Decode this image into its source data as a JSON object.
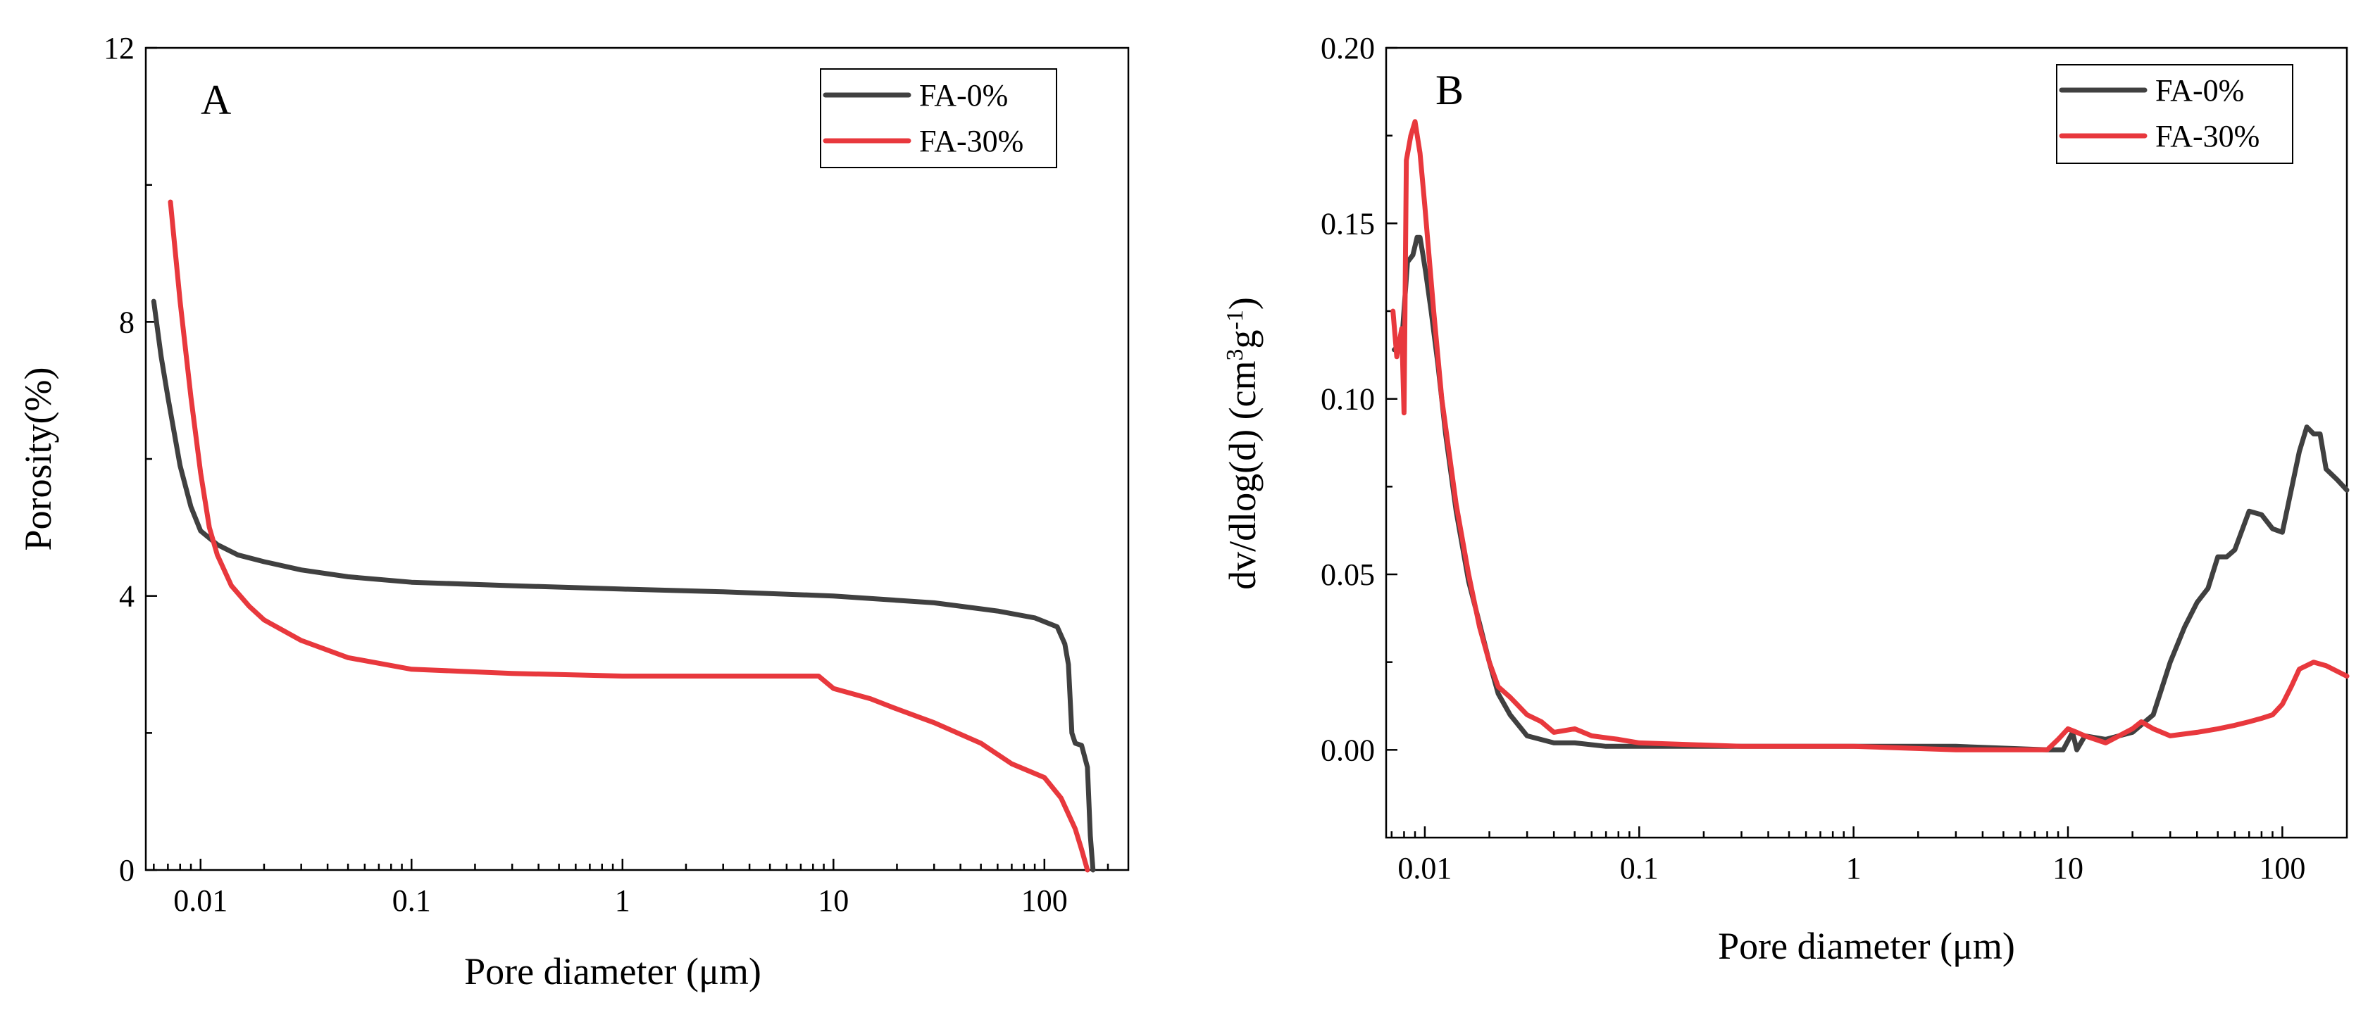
{
  "colors": {
    "FA-0%": "#404040",
    "FA-30%": "#e8383d"
  },
  "chart_data": [
    {
      "type": "line",
      "panel_label": "A",
      "title": "",
      "xlabel": "Pore diameter (μm)",
      "ylabel": "Porosity(%)",
      "xscale": "log",
      "xlim": [
        0.0055,
        250
      ],
      "ylim": [
        0,
        12
      ],
      "xticks": [
        0.01,
        0.1,
        1,
        10,
        100
      ],
      "xtick_labels": [
        "0.01",
        "0.1",
        "1",
        "10",
        "100"
      ],
      "yticks": [
        0,
        4,
        8,
        12
      ],
      "ytick_labels": [
        "0",
        "4",
        "8",
        "12"
      ],
      "legend_position": "top-right",
      "series": [
        {
          "name": "FA-0%",
          "x": [
            0.006,
            0.0065,
            0.007,
            0.008,
            0.009,
            0.01,
            0.012,
            0.015,
            0.02,
            0.03,
            0.05,
            0.1,
            0.3,
            1,
            3,
            10,
            30,
            60,
            90,
            115,
            125,
            130,
            135,
            140,
            150,
            160,
            165,
            170
          ],
          "y": [
            8.3,
            7.5,
            6.9,
            5.9,
            5.3,
            4.95,
            4.75,
            4.6,
            4.5,
            4.38,
            4.28,
            4.2,
            4.15,
            4.1,
            4.06,
            4.0,
            3.9,
            3.78,
            3.68,
            3.55,
            3.3,
            3.0,
            2.0,
            1.85,
            1.82,
            1.5,
            0.5,
            0.0
          ]
        },
        {
          "name": "FA-30%",
          "x": [
            0.0072,
            0.008,
            0.009,
            0.01,
            0.011,
            0.012,
            0.014,
            0.017,
            0.02,
            0.03,
            0.05,
            0.1,
            0.3,
            1,
            3,
            8.5,
            10,
            15,
            20,
            30,
            50,
            70,
            100,
            120,
            140,
            150,
            160
          ],
          "y": [
            9.75,
            8.3,
            6.9,
            5.8,
            5.0,
            4.6,
            4.15,
            3.85,
            3.65,
            3.35,
            3.1,
            2.93,
            2.87,
            2.83,
            2.83,
            2.83,
            2.65,
            2.5,
            2.35,
            2.15,
            1.85,
            1.55,
            1.35,
            1.05,
            0.6,
            0.3,
            0.0
          ]
        }
      ]
    },
    {
      "type": "line",
      "panel_label": "B",
      "title": "",
      "xlabel": "Pore diameter (μm)",
      "ylabel": "dv/dlog(d) (cm³g⁻¹)",
      "ylabel_parts": {
        "base": "dv/dlog(d) (cm",
        "sup1": "3",
        "mid": "g",
        "sup2": "-1",
        "end": ")"
      },
      "xscale": "log",
      "xlim": [
        0.0066,
        200
      ],
      "ylim": [
        -0.025,
        0.2
      ],
      "xticks": [
        0.01,
        0.1,
        1,
        10,
        100
      ],
      "xtick_labels": [
        "0.01",
        "0.1",
        "1",
        "10",
        "100"
      ],
      "yticks": [
        0,
        0.05,
        0.1,
        0.15,
        0.2
      ],
      "ytick_labels": [
        "0.00",
        "0.05",
        "0.10",
        "0.15",
        "0.20"
      ],
      "legend_position": "top-right",
      "series": [
        {
          "name": "FA-0%",
          "x": [
            0.0072,
            0.0078,
            0.0083,
            0.0088,
            0.0092,
            0.0095,
            0.0098,
            0.0101,
            0.0107,
            0.0115,
            0.0125,
            0.014,
            0.016,
            0.018,
            0.02,
            0.022,
            0.025,
            0.03,
            0.04,
            0.05,
            0.07,
            0.1,
            0.3,
            1,
            3,
            8,
            9.5,
            10.5,
            11,
            12,
            15,
            20,
            25,
            30,
            35,
            40,
            45,
            50,
            55,
            60,
            70,
            80,
            90,
            100,
            120,
            130,
            140,
            150,
            160,
            180,
            200
          ],
          "y": [
            0.114,
            0.116,
            0.139,
            0.141,
            0.146,
            0.146,
            0.141,
            0.136,
            0.125,
            0.11,
            0.09,
            0.068,
            0.048,
            0.036,
            0.025,
            0.016,
            0.01,
            0.004,
            0.002,
            0.002,
            0.001,
            0.001,
            0.001,
            0.001,
            0.001,
            0.0,
            0.0,
            0.005,
            0.0,
            0.004,
            0.003,
            0.005,
            0.01,
            0.025,
            0.035,
            0.042,
            0.046,
            0.055,
            0.055,
            0.057,
            0.068,
            0.067,
            0.063,
            0.062,
            0.085,
            0.092,
            0.09,
            0.09,
            0.08,
            0.077,
            0.074
          ]
        },
        {
          "name": "FA-30%",
          "x": [
            0.0071,
            0.0074,
            0.0078,
            0.008,
            0.0082,
            0.0086,
            0.009,
            0.0095,
            0.01,
            0.011,
            0.012,
            0.014,
            0.016,
            0.018,
            0.02,
            0.022,
            0.025,
            0.03,
            0.035,
            0.04,
            0.05,
            0.06,
            0.08,
            0.1,
            0.3,
            1,
            3,
            8,
            9,
            10,
            11,
            12,
            15,
            20,
            22,
            25,
            30,
            40,
            50,
            60,
            70,
            80,
            90,
            100,
            110,
            120,
            140,
            160,
            200
          ],
          "y": [
            0.125,
            0.112,
            0.12,
            0.096,
            0.168,
            0.175,
            0.179,
            0.17,
            0.155,
            0.125,
            0.1,
            0.07,
            0.05,
            0.035,
            0.025,
            0.018,
            0.015,
            0.01,
            0.008,
            0.005,
            0.006,
            0.004,
            0.003,
            0.002,
            0.001,
            0.001,
            0.0,
            0.0,
            0.003,
            0.006,
            0.005,
            0.004,
            0.002,
            0.006,
            0.008,
            0.006,
            0.004,
            0.005,
            0.006,
            0.007,
            0.008,
            0.009,
            0.01,
            0.013,
            0.018,
            0.023,
            0.025,
            0.024,
            0.021
          ]
        }
      ]
    }
  ]
}
